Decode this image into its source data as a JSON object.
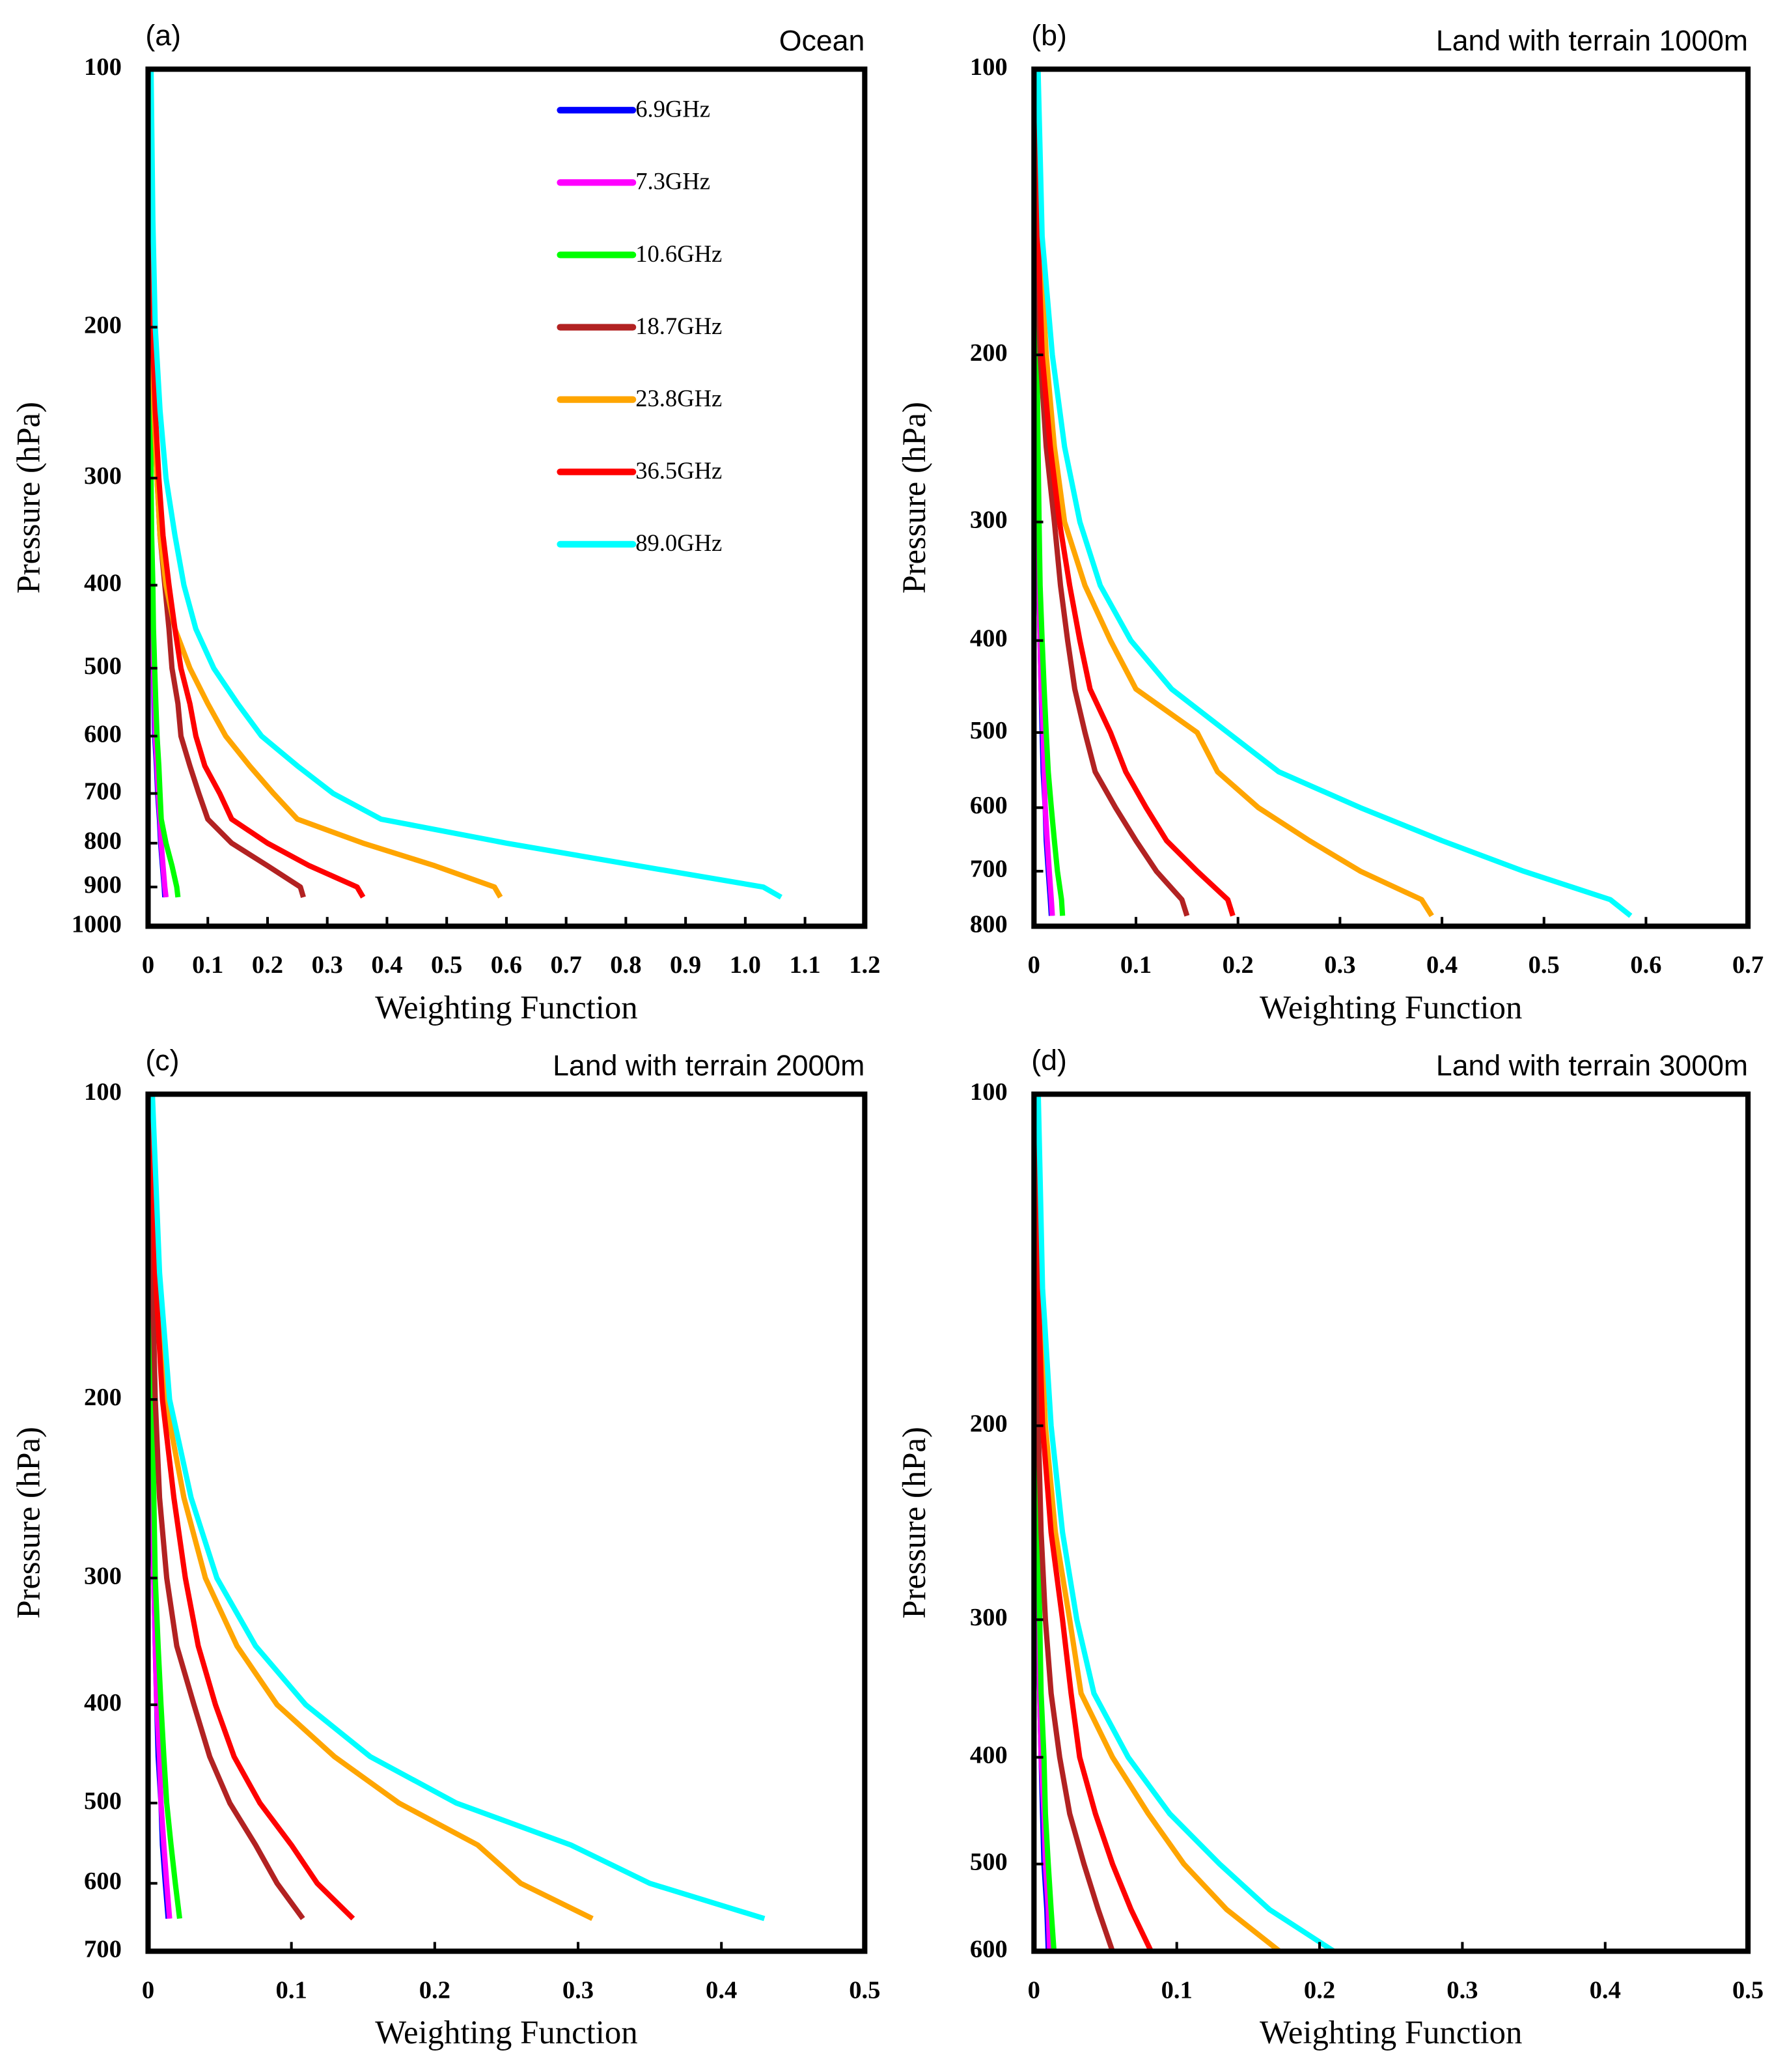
{
  "chart_data": [
    {
      "type": "line",
      "panel": "(a)",
      "title": "Ocean",
      "xlabel": "Weighting Function",
      "ylabel": "Pressure (hPa)",
      "ylog": true,
      "yinvert": true,
      "legend": true,
      "xlim": [
        0,
        1.2
      ],
      "xticks": [
        0,
        0.1,
        0.2,
        0.3,
        0.4,
        0.5,
        0.6,
        0.7,
        0.8,
        0.9,
        {
          "value": 1,
          "label": "1.0"
        },
        1.1,
        1.2
      ],
      "ylim": [
        100,
        1000
      ],
      "yticks": [
        100,
        200,
        300,
        400,
        500,
        600,
        700,
        800,
        900,
        1000
      ],
      "pressure": [
        100,
        150,
        200,
        250,
        300,
        350,
        400,
        450,
        500,
        550,
        600,
        650,
        700,
        750,
        800,
        850,
        900,
        925
      ],
      "series": [
        {
          "name": "6.9GHz",
          "color": "#0000ff",
          "values": [
            0.001,
            0.0014,
            0.002,
            0.003,
            0.004,
            0.005,
            0.007,
            0.008,
            0.009,
            0.01,
            0.011,
            0.014,
            0.016,
            0.019,
            0.021,
            0.024,
            0.027,
            0.028
          ]
        },
        {
          "name": "7.3GHz",
          "color": "#ff00ff",
          "values": [
            0.001,
            0.0015,
            0.002,
            0.003,
            0.004,
            0.005,
            0.007,
            0.008,
            0.009,
            0.011,
            0.012,
            0.015,
            0.017,
            0.02,
            0.022,
            0.025,
            0.028,
            0.03
          ]
        },
        {
          "name": "10.6GHz",
          "color": "#00ff00",
          "values": [
            0.001,
            0.002,
            0.003,
            0.004,
            0.005,
            0.006,
            0.008,
            0.009,
            0.011,
            0.013,
            0.015,
            0.018,
            0.02,
            0.022,
            0.03,
            0.04,
            0.048,
            0.05
          ]
        },
        {
          "name": "18.7GHz",
          "color": "#b22222",
          "values": [
            0.002,
            0.003,
            0.006,
            0.01,
            0.015,
            0.02,
            0.028,
            0.035,
            0.04,
            0.05,
            0.055,
            0.07,
            0.085,
            0.1,
            0.14,
            0.2,
            0.255,
            0.26
          ]
        },
        {
          "name": "23.8GHz",
          "color": "#ffa500",
          "values": [
            0.002,
            0.004,
            0.006,
            0.01,
            0.015,
            0.02,
            0.03,
            0.045,
            0.07,
            0.1,
            0.13,
            0.17,
            0.21,
            0.25,
            0.36,
            0.48,
            0.58,
            0.59
          ]
        },
        {
          "name": "36.5GHz",
          "color": "#ff0000",
          "values": [
            0.002,
            0.004,
            0.007,
            0.012,
            0.018,
            0.025,
            0.035,
            0.045,
            0.055,
            0.07,
            0.08,
            0.095,
            0.12,
            0.14,
            0.2,
            0.27,
            0.35,
            0.36
          ]
        },
        {
          "name": "89.0GHz",
          "color": "#00ffff",
          "values": [
            0.005,
            0.008,
            0.012,
            0.02,
            0.03,
            0.045,
            0.06,
            0.08,
            0.11,
            0.15,
            0.19,
            0.25,
            0.31,
            0.39,
            0.6,
            0.82,
            1.03,
            1.06
          ]
        }
      ]
    },
    {
      "type": "line",
      "panel": "(b)",
      "title": "Land with terrain 1000m",
      "xlabel": "Weighting Function",
      "ylabel": "Pressure (hPa)",
      "ylog": true,
      "yinvert": true,
      "legend": false,
      "xlim": [
        0,
        0.7
      ],
      "xticks": [
        0,
        0.1,
        0.2,
        0.3,
        0.4,
        0.5,
        0.6,
        0.7
      ],
      "ylim": [
        100,
        800
      ],
      "yticks": [
        100,
        200,
        300,
        400,
        500,
        600,
        700,
        800
      ],
      "pressure": [
        100,
        150,
        200,
        250,
        300,
        350,
        400,
        450,
        500,
        550,
        600,
        650,
        700,
        750,
        780
      ],
      "series": [
        {
          "color": "#0000ff",
          "values": [
            0.001,
            0.001,
            0.002,
            0.003,
            0.004,
            0.005,
            0.006,
            0.007,
            0.008,
            0.009,
            0.011,
            0.012,
            0.014,
            0.016,
            0.017
          ]
        },
        {
          "color": "#ff00ff",
          "values": [
            0.001,
            0.001,
            0.002,
            0.003,
            0.004,
            0.005,
            0.006,
            0.007,
            0.009,
            0.01,
            0.011,
            0.013,
            0.015,
            0.017,
            0.018
          ]
        },
        {
          "color": "#00ff00",
          "values": [
            0.001,
            0.002,
            0.003,
            0.004,
            0.005,
            0.006,
            0.008,
            0.01,
            0.012,
            0.014,
            0.017,
            0.02,
            0.023,
            0.027,
            0.028
          ]
        },
        {
          "color": "#b22222",
          "values": [
            0.001,
            0.003,
            0.006,
            0.012,
            0.02,
            0.026,
            0.033,
            0.04,
            0.05,
            0.06,
            0.08,
            0.1,
            0.12,
            0.145,
            0.15
          ]
        },
        {
          "color": "#ffa500",
          "values": [
            0.003,
            0.006,
            0.012,
            0.02,
            0.03,
            0.05,
            0.075,
            0.1,
            0.16,
            0.18,
            0.22,
            0.27,
            0.32,
            0.38,
            0.39
          ]
        },
        {
          "color": "#ff0000",
          "values": [
            0.002,
            0.004,
            0.008,
            0.016,
            0.025,
            0.035,
            0.045,
            0.055,
            0.075,
            0.09,
            0.11,
            0.13,
            0.16,
            0.19,
            0.195
          ]
        },
        {
          "color": "#00ffff",
          "values": [
            0.004,
            0.008,
            0.018,
            0.03,
            0.045,
            0.065,
            0.095,
            0.135,
            0.19,
            0.24,
            0.32,
            0.4,
            0.48,
            0.565,
            0.585
          ]
        }
      ]
    },
    {
      "type": "line",
      "panel": "(c)",
      "title": "Land with terrain 2000m",
      "xlabel": "Weighting Function",
      "ylabel": "Pressure (hPa)",
      "ylog": true,
      "yinvert": true,
      "legend": false,
      "xlim": [
        0,
        0.5
      ],
      "xticks": [
        0,
        0.1,
        0.2,
        0.3,
        0.4,
        0.5
      ],
      "ylim": [
        100,
        700
      ],
      "yticks": [
        100,
        200,
        300,
        400,
        500,
        600,
        700
      ],
      "pressure": [
        100,
        150,
        200,
        250,
        300,
        350,
        400,
        450,
        500,
        550,
        600,
        650
      ],
      "series": [
        {
          "color": "#0000ff",
          "values": [
            0.001,
            0.001,
            0.002,
            0.003,
            0.004,
            0.005,
            0.006,
            0.007,
            0.009,
            0.01,
            0.012,
            0.014
          ]
        },
        {
          "color": "#ff00ff",
          "values": [
            0.001,
            0.001,
            0.002,
            0.003,
            0.004,
            0.005,
            0.006,
            0.008,
            0.009,
            0.011,
            0.013,
            0.015
          ]
        },
        {
          "color": "#00ff00",
          "values": [
            0.001,
            0.002,
            0.003,
            0.004,
            0.005,
            0.007,
            0.009,
            0.011,
            0.013,
            0.016,
            0.019,
            0.022
          ]
        },
        {
          "color": "#b22222",
          "values": [
            0.001,
            0.003,
            0.005,
            0.008,
            0.013,
            0.02,
            0.032,
            0.043,
            0.057,
            0.075,
            0.09,
            0.108
          ]
        },
        {
          "color": "#ffa500",
          "values": [
            0.002,
            0.006,
            0.012,
            0.025,
            0.04,
            0.062,
            0.09,
            0.13,
            0.175,
            0.23,
            0.26,
            0.31
          ]
        },
        {
          "color": "#ff0000",
          "values": [
            0.002,
            0.005,
            0.01,
            0.018,
            0.026,
            0.035,
            0.047,
            0.06,
            0.078,
            0.1,
            0.118,
            0.143
          ]
        },
        {
          "color": "#00ffff",
          "values": [
            0.003,
            0.008,
            0.015,
            0.03,
            0.048,
            0.075,
            0.11,
            0.155,
            0.215,
            0.295,
            0.35,
            0.43
          ]
        }
      ]
    },
    {
      "type": "line",
      "panel": "(d)",
      "title": "Land with terrain 3000m",
      "xlabel": "Weighting Function",
      "ylabel": "Pressure (hPa)",
      "ylog": true,
      "yinvert": true,
      "legend": false,
      "xlim": [
        0,
        0.5
      ],
      "xticks": [
        0,
        0.1,
        0.2,
        0.3,
        0.4,
        0.5
      ],
      "ylim": [
        100,
        600
      ],
      "yticks": [
        100,
        200,
        300,
        400,
        500,
        600
      ],
      "pressure": [
        100,
        150,
        200,
        250,
        300,
        350,
        400,
        450,
        500,
        550,
        600
      ],
      "series": [
        {
          "color": "#0000ff",
          "values": [
            0.001,
            0.001,
            0.002,
            0.002,
            0.003,
            0.004,
            0.005,
            0.006,
            0.007,
            0.009,
            0.01
          ]
        },
        {
          "color": "#ff00ff",
          "values": [
            0.001,
            0.001,
            0.002,
            0.003,
            0.003,
            0.004,
            0.005,
            0.007,
            0.008,
            0.01,
            0.011
          ]
        },
        {
          "color": "#00ff00",
          "values": [
            0.001,
            0.002,
            0.002,
            0.003,
            0.004,
            0.005,
            0.007,
            0.008,
            0.01,
            0.012,
            0.014
          ]
        },
        {
          "color": "#b22222",
          "values": [
            0.001,
            0.002,
            0.003,
            0.005,
            0.008,
            0.012,
            0.018,
            0.025,
            0.035,
            0.045,
            0.055
          ]
        },
        {
          "color": "#ffa500",
          "values": [
            0.002,
            0.004,
            0.008,
            0.015,
            0.025,
            0.033,
            0.055,
            0.08,
            0.105,
            0.135,
            0.172
          ]
        },
        {
          "color": "#ff0000",
          "values": [
            0.001,
            0.003,
            0.006,
            0.012,
            0.02,
            0.026,
            0.032,
            0.043,
            0.055,
            0.068,
            0.082
          ]
        },
        {
          "color": "#00ffff",
          "values": [
            0.003,
            0.006,
            0.012,
            0.02,
            0.03,
            0.042,
            0.066,
            0.095,
            0.13,
            0.165,
            0.21
          ]
        }
      ]
    }
  ]
}
